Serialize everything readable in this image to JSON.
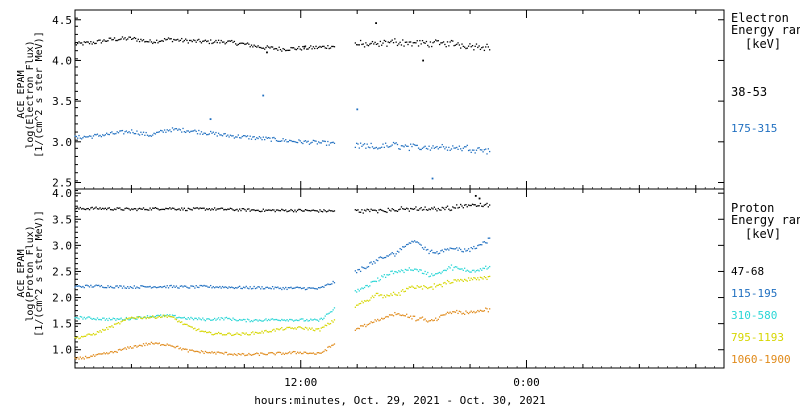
{
  "chart_data": [
    {
      "type": "scatter",
      "panel": "electron",
      "ylabel": "ACE EPAM",
      "ylabel2": "log(Electron Flux)",
      "ylabel3": "[1/(cm^2 s ster MeV)]",
      "ylim": [
        2.42,
        4.62
      ],
      "yticks": [
        "2.5",
        "3.0",
        "3.5",
        "4.0",
        "4.5"
      ],
      "ytick_values": [
        2.5,
        3.0,
        3.5,
        4.0,
        4.5
      ],
      "legend_title_1": "Electron",
      "legend_title_2": "Energy range",
      "legend_units": "[keV]",
      "series": [
        {
          "name": "38-53",
          "color": "#000000",
          "x": [
            0,
            1,
            2,
            3,
            4,
            5,
            6,
            7,
            8,
            9,
            10,
            11,
            12,
            13,
            15,
            16,
            17,
            18,
            19,
            20,
            21,
            22
          ],
          "y": [
            4.2,
            4.22,
            4.26,
            4.27,
            4.23,
            4.26,
            4.24,
            4.23,
            4.23,
            4.2,
            4.16,
            4.14,
            4.15,
            4.16,
            4.2,
            4.19,
            4.23,
            4.21,
            4.21,
            4.21,
            4.18,
            4.17
          ],
          "outliers_x": [
            12.2,
            16.0,
            10.2,
            18.5
          ],
          "outliers_y": [
            4.17,
            4.46,
            4.1,
            4.0
          ]
        },
        {
          "name": "175-315",
          "color": "#1f6fc0",
          "x": [
            0,
            1,
            2,
            3,
            4,
            5,
            6,
            7,
            8,
            9,
            10,
            11,
            12,
            13,
            15,
            16,
            17,
            18,
            19,
            20,
            21,
            22
          ],
          "y": [
            3.05,
            3.07,
            3.1,
            3.13,
            3.08,
            3.15,
            3.14,
            3.11,
            3.08,
            3.06,
            3.04,
            3.02,
            3.0,
            2.99,
            2.95,
            2.93,
            2.96,
            2.93,
            2.94,
            2.93,
            2.92,
            2.9
          ],
          "outliers_x": [
            7.2,
            10.0,
            15.0,
            19.0
          ],
          "outliers_y": [
            3.28,
            3.57,
            3.4,
            2.55
          ]
        }
      ]
    },
    {
      "type": "scatter",
      "panel": "proton",
      "ylabel": "ACE EPAM",
      "ylabel2": "log(Proton Flux)",
      "ylabel3": "[1/(cm^2 s ster MeV)]",
      "ylim": [
        0.65,
        4.08
      ],
      "yticks": [
        "1.0",
        "1.5",
        "2.0",
        "2.5",
        "3.0",
        "3.5",
        "4.0"
      ],
      "ytick_values": [
        1.0,
        1.5,
        2.0,
        2.5,
        3.0,
        3.5,
        4.0
      ],
      "legend_title_1": "Proton",
      "legend_title_2": "Energy range",
      "legend_units": "[keV]",
      "series": [
        {
          "name": "47-68",
          "color": "#000000",
          "x": [
            0,
            1,
            2,
            3,
            4,
            5,
            6,
            7,
            8,
            9,
            10,
            11,
            12,
            13,
            15,
            16,
            17,
            18,
            19,
            20,
            21,
            22
          ],
          "y": [
            3.7,
            3.71,
            3.7,
            3.69,
            3.7,
            3.71,
            3.69,
            3.7,
            3.69,
            3.68,
            3.67,
            3.67,
            3.67,
            3.66,
            3.66,
            3.67,
            3.68,
            3.7,
            3.69,
            3.72,
            3.78,
            3.76
          ],
          "outliers_x": [
            21.3,
            21.5
          ],
          "outliers_y": [
            3.95,
            3.9
          ]
        },
        {
          "name": "115-195",
          "color": "#1f6fc0",
          "x": [
            0,
            1,
            2,
            3,
            4,
            5,
            6,
            7,
            8,
            9,
            10,
            11,
            12,
            13,
            15,
            16,
            17,
            18,
            19,
            20,
            21,
            22
          ],
          "y": [
            2.21,
            2.22,
            2.21,
            2.2,
            2.21,
            2.21,
            2.2,
            2.21,
            2.2,
            2.19,
            2.19,
            2.18,
            2.18,
            2.17,
            2.5,
            2.7,
            2.85,
            3.1,
            2.85,
            2.95,
            2.9,
            3.1
          ],
          "outliers_x": [],
          "outliers_y": []
        },
        {
          "name": "310-580",
          "color": "#2bd6d6",
          "x": [
            0,
            1,
            2,
            3,
            4,
            5,
            6,
            7,
            8,
            9,
            10,
            11,
            12,
            13,
            15,
            16,
            17,
            18,
            19,
            20,
            21,
            22
          ],
          "y": [
            1.62,
            1.6,
            1.58,
            1.6,
            1.64,
            1.65,
            1.6,
            1.58,
            1.6,
            1.56,
            1.57,
            1.58,
            1.57,
            1.56,
            2.12,
            2.32,
            2.5,
            2.55,
            2.42,
            2.58,
            2.5,
            2.6
          ],
          "outliers_x": [],
          "outliers_y": []
        },
        {
          "name": "795-1193",
          "color": "#d6d600",
          "x": [
            0,
            1,
            2,
            3,
            4,
            5,
            6,
            7,
            8,
            9,
            10,
            11,
            12,
            13,
            15,
            16,
            17,
            18,
            19,
            20,
            21,
            22
          ],
          "y": [
            1.22,
            1.3,
            1.45,
            1.62,
            1.62,
            1.65,
            1.45,
            1.32,
            1.3,
            1.3,
            1.34,
            1.4,
            1.42,
            1.38,
            1.85,
            2.05,
            2.05,
            2.2,
            2.2,
            2.3,
            2.35,
            2.38
          ],
          "outliers_x": [],
          "outliers_y": []
        },
        {
          "name": "1060-1900",
          "color": "#e08a1a",
          "x": [
            0,
            1,
            2,
            3,
            4,
            5,
            6,
            7,
            8,
            9,
            10,
            11,
            12,
            13,
            15,
            16,
            17,
            18,
            19,
            20,
            21,
            22
          ],
          "y": [
            0.82,
            0.88,
            0.95,
            1.05,
            1.12,
            1.1,
            0.98,
            0.95,
            0.93,
            0.9,
            0.92,
            0.93,
            0.95,
            0.92,
            1.4,
            1.55,
            1.7,
            1.6,
            1.55,
            1.72,
            1.7,
            1.78
          ],
          "outliers_x": [],
          "outliers_y": []
        }
      ]
    }
  ],
  "x_axis": {
    "tick_labels": [
      "12:00",
      "0:00"
    ],
    "tick_values": [
      12,
      24
    ],
    "minor_tick_values": [
      3,
      6,
      9,
      15,
      18,
      21,
      27,
      30,
      33
    ],
    "xlim": [
      0,
      34.5
    ],
    "xlabel": "hours:minutes, Oct. 29, 2021 - Oct. 30, 2021"
  }
}
